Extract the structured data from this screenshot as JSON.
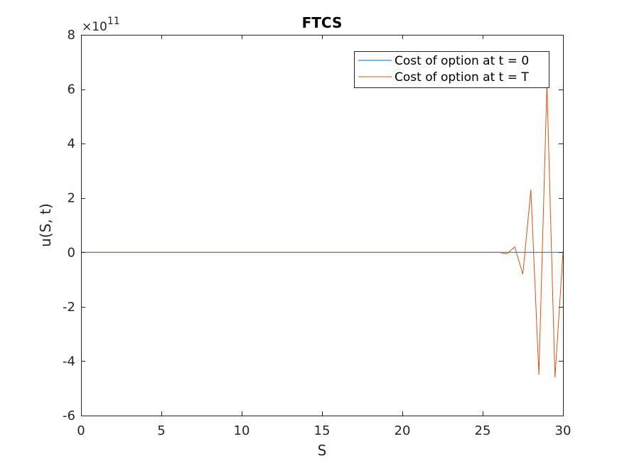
{
  "chart_data": {
    "type": "line",
    "title": "FTCS",
    "xlabel": "S",
    "ylabel": "u(S, t)",
    "y_exponent_base": "×10",
    "y_exponent_power": "11",
    "xlim": [
      0,
      30
    ],
    "ylim": [
      -6,
      8
    ],
    "y_scale": 100000000000.0,
    "xticks": [
      0,
      5,
      10,
      15,
      20,
      25,
      30
    ],
    "yticks": [
      -6,
      -4,
      -2,
      0,
      2,
      4,
      6,
      8
    ],
    "grid": false,
    "box": true,
    "legend_position": "top-right",
    "series": [
      {
        "name": "Cost of option at t = 0",
        "color": "#0072bd",
        "x": [
          0,
          26.5,
          30
        ],
        "y": [
          0,
          0,
          0
        ]
      },
      {
        "name": "Cost of option at t = T",
        "color": "#d95319",
        "x": [
          0,
          26.0,
          26.5,
          27.0,
          27.5,
          28.0,
          28.5,
          29.0,
          29.5,
          30.0
        ],
        "y": [
          0,
          0,
          -0.05,
          0.2,
          -0.8,
          2.3,
          -4.5,
          6.2,
          -4.6,
          0
        ]
      }
    ]
  }
}
